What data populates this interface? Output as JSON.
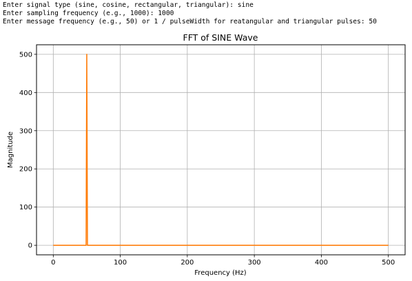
{
  "console": {
    "lines": [
      "Enter signal type (sine, cosine, rectangular, triangular): sine",
      "Enter sampling frequency (e.g., 1000): 1000",
      "Enter message frequency (e.g., 50) or 1 / pulseWidth for reatangular and triangular pulses: 50"
    ]
  },
  "chart_data": {
    "type": "line",
    "title": "FFT of SINE Wave",
    "xlabel": "Frequency (Hz)",
    "ylabel": "Magnitude",
    "xlim": [
      -25,
      525
    ],
    "ylim": [
      -25,
      525
    ],
    "xticks": [
      0,
      100,
      200,
      300,
      400,
      500
    ],
    "yticks": [
      0,
      100,
      200,
      300,
      400,
      500
    ],
    "grid": true,
    "series": [
      {
        "color": "#ff7f0e",
        "x": [
          0,
          49,
          50,
          51,
          500
        ],
        "y": [
          0,
          0,
          500,
          0,
          0
        ]
      }
    ]
  }
}
